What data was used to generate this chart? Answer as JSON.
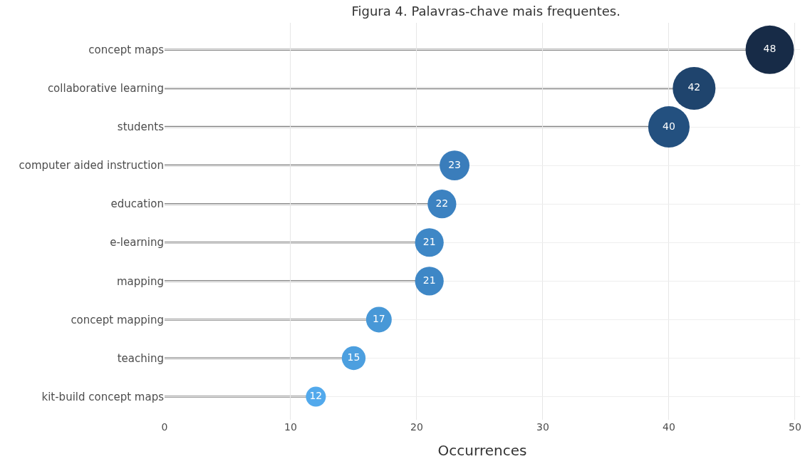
{
  "chart_data": {
    "type": "lollipop",
    "title": "Figura 4. Palavras-chave mais frequentes.",
    "orientation": "horizontal",
    "categories": [
      "concept maps",
      "collaborative learning",
      "students",
      "computer aided instruction",
      "education",
      "e-learning",
      "mapping",
      "concept mapping",
      "teaching",
      "kit-build concept maps"
    ],
    "values": [
      48,
      42,
      40,
      23,
      22,
      21,
      21,
      17,
      15,
      12
    ],
    "colors": [
      "#172b47",
      "#1f446d",
      "#23507f",
      "#3a7dbb",
      "#3c82c1",
      "#3e87c6",
      "#3e87c6",
      "#4898d7",
      "#4c9fdf",
      "#52a9ec"
    ],
    "sizes": [
      1,
      0.78,
      0.73,
      0.38,
      0.35,
      0.35,
      0.35,
      0.28,
      0.24,
      0.17
    ],
    "data_labels": true,
    "xlabel": "Occurrences",
    "xlim": [
      0,
      50.4
    ],
    "xticks": [
      0,
      10,
      20,
      30,
      40,
      50
    ],
    "grid": true,
    "marker": "circle"
  }
}
